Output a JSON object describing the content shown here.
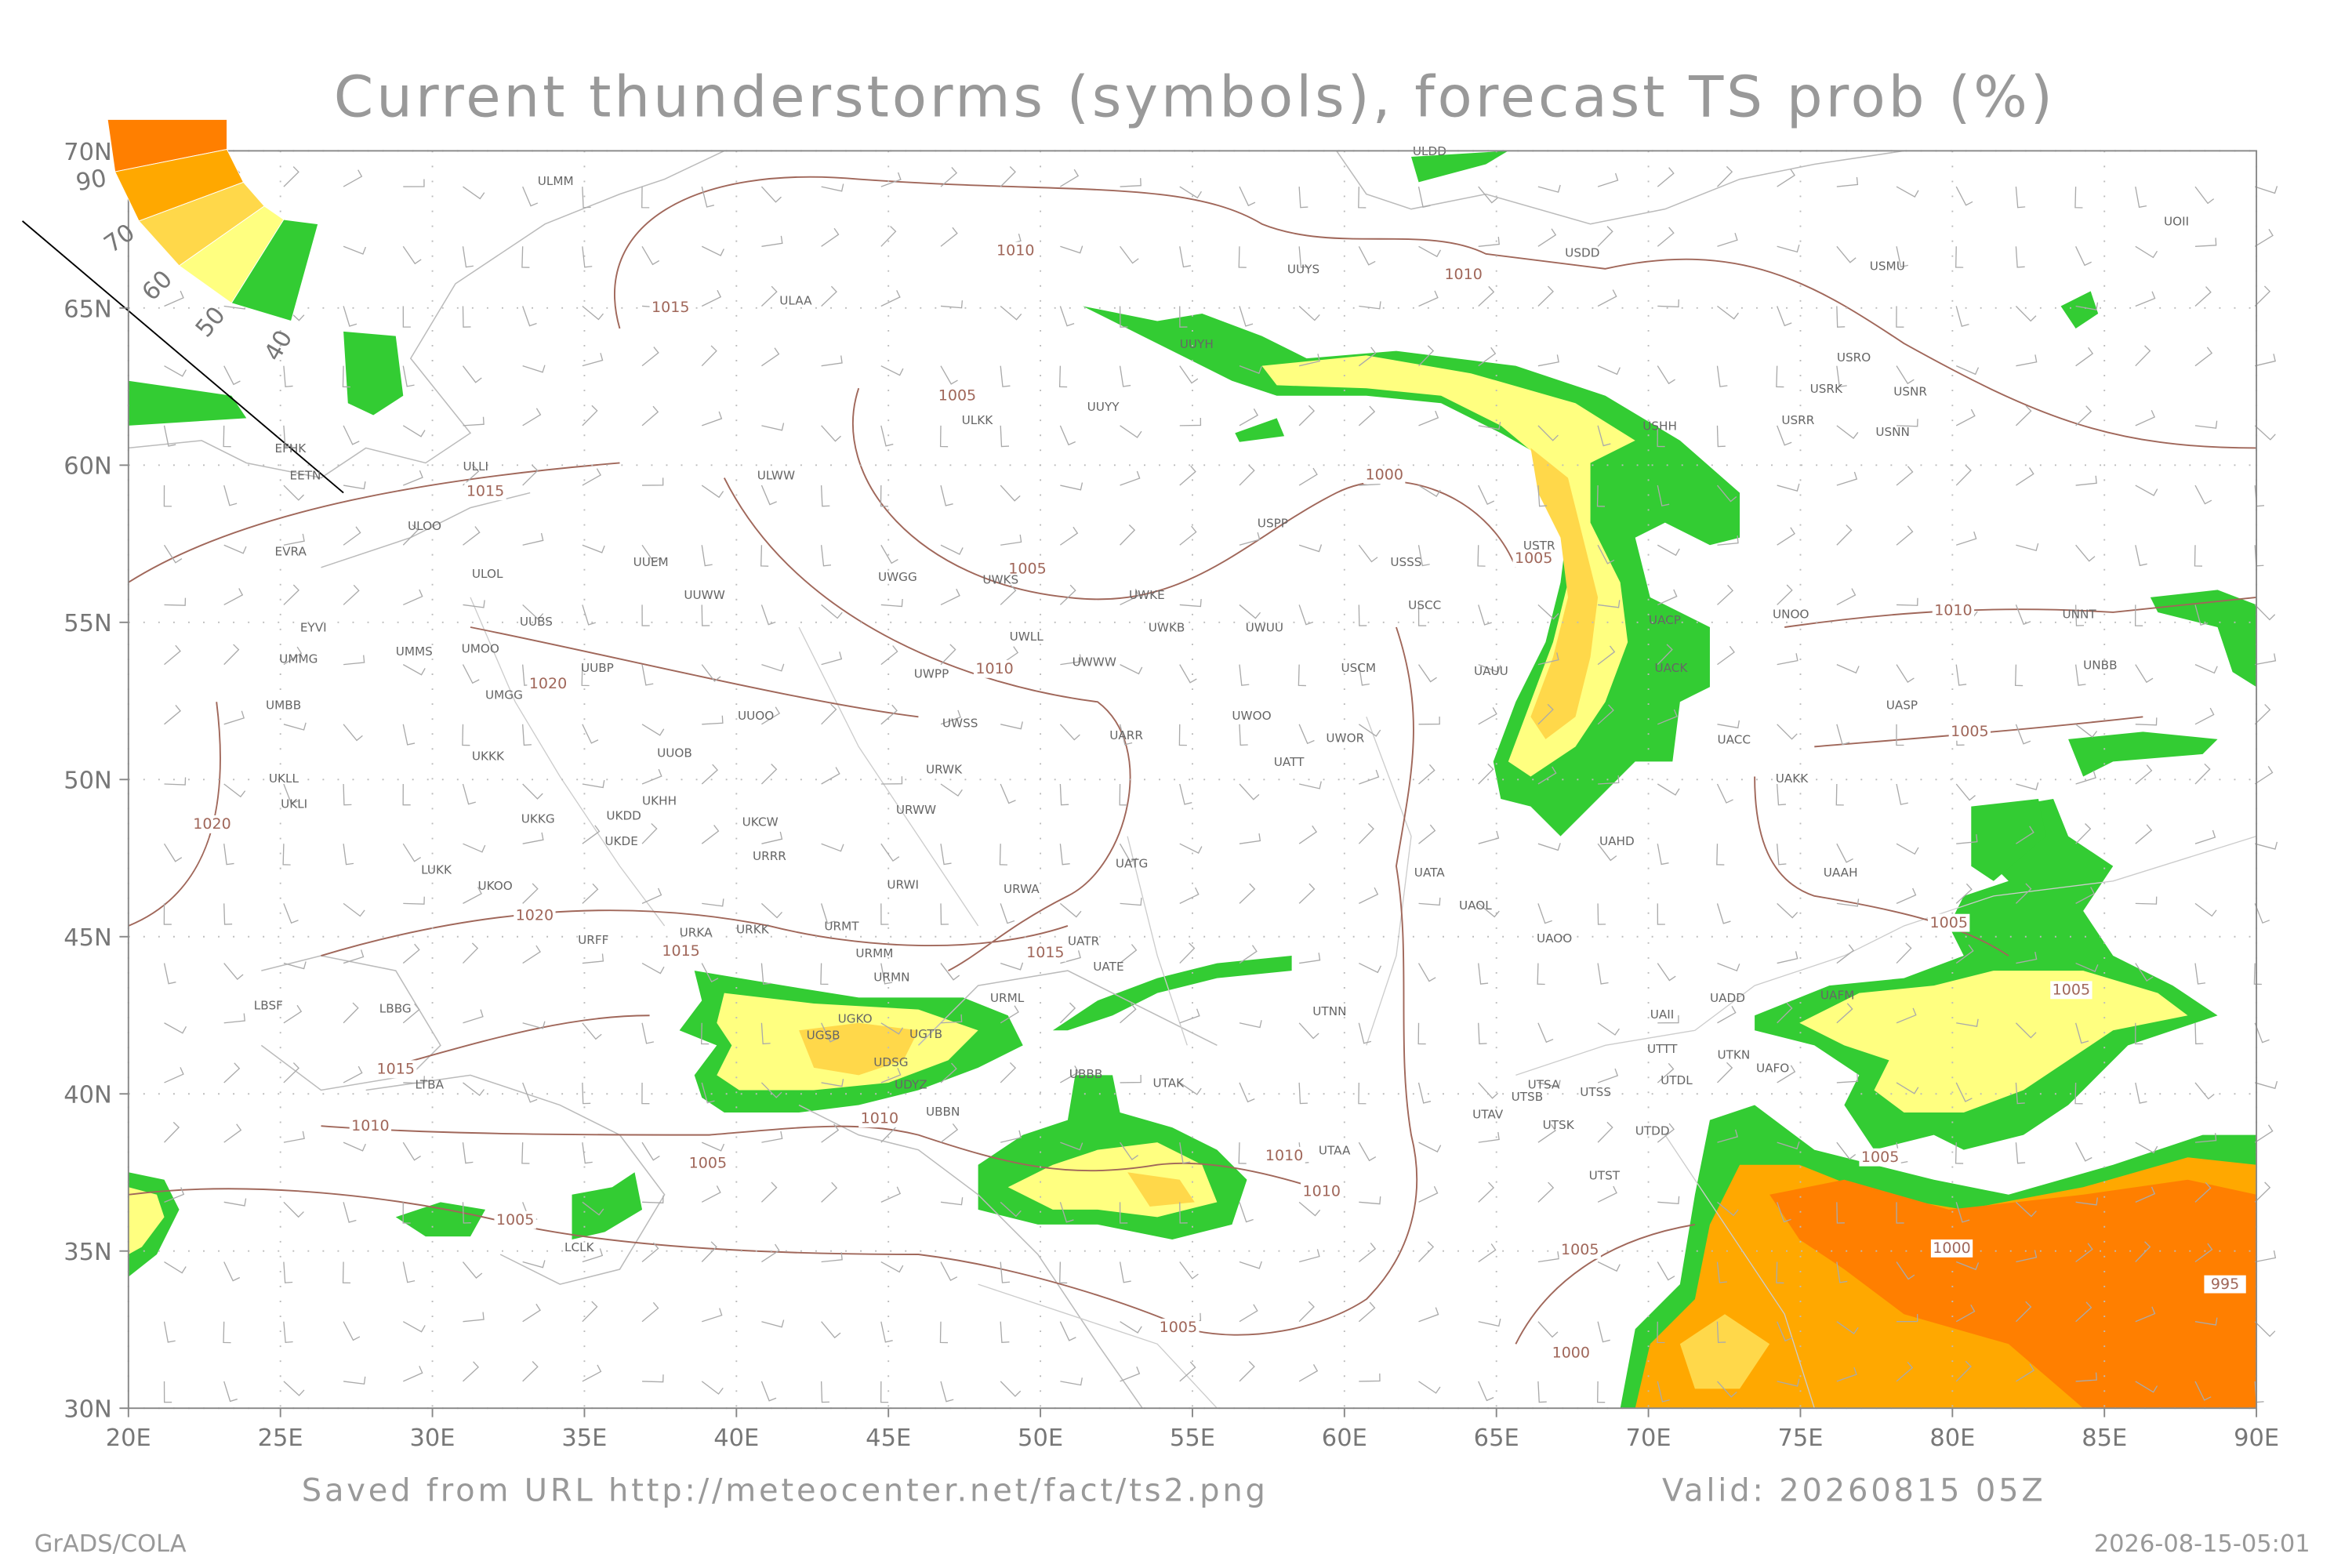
{
  "title": "Current thunderstorms (symbols), forecast TS prob (%)",
  "map": {
    "xlim": [
      20,
      90
    ],
    "ylim": [
      30,
      70
    ],
    "xticks": [
      {
        "value": 20,
        "label": "20E"
      },
      {
        "value": 25,
        "label": "25E"
      },
      {
        "value": 30,
        "label": "30E"
      },
      {
        "value": 35,
        "label": "35E"
      },
      {
        "value": 40,
        "label": "40E"
      },
      {
        "value": 45,
        "label": "45E"
      },
      {
        "value": 50,
        "label": "50E"
      },
      {
        "value": 55,
        "label": "55E"
      },
      {
        "value": 60,
        "label": "60E"
      },
      {
        "value": 65,
        "label": "65E"
      },
      {
        "value": 70,
        "label": "70E"
      },
      {
        "value": 75,
        "label": "75E"
      },
      {
        "value": 80,
        "label": "80E"
      },
      {
        "value": 85,
        "label": "85E"
      },
      {
        "value": 90,
        "label": "90E"
      }
    ],
    "yticks": [
      {
        "value": 30,
        "label": "30N"
      },
      {
        "value": 35,
        "label": "35N"
      },
      {
        "value": 40,
        "label": "40N"
      },
      {
        "value": 45,
        "label": "45N"
      },
      {
        "value": 50,
        "label": "50N"
      },
      {
        "value": 55,
        "label": "55N"
      },
      {
        "value": 60,
        "label": "60N"
      },
      {
        "value": 65,
        "label": "65N"
      },
      {
        "value": 70,
        "label": "70N"
      }
    ],
    "grid": true
  },
  "legend": {
    "labels": [
      "90",
      "70",
      "60",
      "50",
      "40"
    ],
    "colors": [
      "#ff7f00",
      "#ffa800",
      "#ffd84a",
      "#ffff80",
      "#33cc33"
    ]
  },
  "stations": [
    "ULMM",
    "ULDD",
    "UOII",
    "USDD",
    "UUYS",
    "USMU",
    "ULAA",
    "UUYH",
    "USRO",
    "USRK",
    "USNR",
    "UUYY",
    "ULKK",
    "USRR",
    "USNN",
    "USHH",
    "EFHK",
    "EETN",
    "ULLI",
    "ULWW",
    "USPP",
    "ULOO",
    "USTR",
    "EVRA",
    "UUEM",
    "USSS",
    "ULOL",
    "UWGG",
    "UWKS",
    "UUWW",
    "UWKE",
    "USCC",
    "UUBS",
    "UNOO",
    "UNNT",
    "UWKB",
    "UWUU",
    "UACP",
    "EYVI",
    "UWLL",
    "UMMS",
    "UMOO",
    "UMMG",
    "UWWW",
    "UUBP",
    "UMGG",
    "UWPP",
    "USCM",
    "UAUU",
    "UACK",
    "UNBB",
    "UMBB",
    "UASP",
    "UUOO",
    "UWOO",
    "UWSS",
    "UARR",
    "UWOR",
    "UACC",
    "UKKK",
    "UUOB",
    "URWK",
    "UATT",
    "UKLL",
    "UAKK",
    "UKLI",
    "UKHH",
    "UKKG",
    "UKDD",
    "UKCW",
    "URWW",
    "UKDE",
    "UAHD",
    "URRR",
    "UATG",
    "UATA",
    "UAAH",
    "LUKK",
    "UKOO",
    "URWI",
    "URWA",
    "UAOL",
    "URFF",
    "URKA",
    "URKK",
    "URMT",
    "UATR",
    "UAOO",
    "URMM",
    "UATE",
    "URMN",
    "LBSF",
    "LBBG",
    "URML",
    "UADD",
    "UAFM",
    "UTNN",
    "UGKO",
    "UAII",
    "UGTB",
    "UGSB",
    "UTTT",
    "UTKN",
    "UDSG",
    "UAFO",
    "UDYZ",
    "UBBB",
    "UTAK",
    "LTBA",
    "UTSA",
    "UTSS",
    "UTDL",
    "UTSB",
    "UBBN",
    "UTAV",
    "UTSK",
    "UTDD",
    "UTAA",
    "UTST",
    "LCLK"
  ],
  "isobar_labels": [
    1010,
    1010,
    1015,
    1005,
    1015,
    1000,
    1005,
    1005,
    1010,
    1010,
    1020,
    1005,
    1020,
    1020,
    1015,
    1015,
    1005,
    1005,
    1015,
    1010,
    1010,
    1005,
    1010,
    1005,
    1010,
    1005,
    1005,
    1000,
    995,
    1005,
    1000
  ],
  "footer": {
    "source": "Saved from URL http://meteocenter.net/fact/ts2.png",
    "valid": "Valid: 20260815 05Z",
    "credit": "GrADS/COLA",
    "timestamp": "2026-08-15-05:01"
  }
}
